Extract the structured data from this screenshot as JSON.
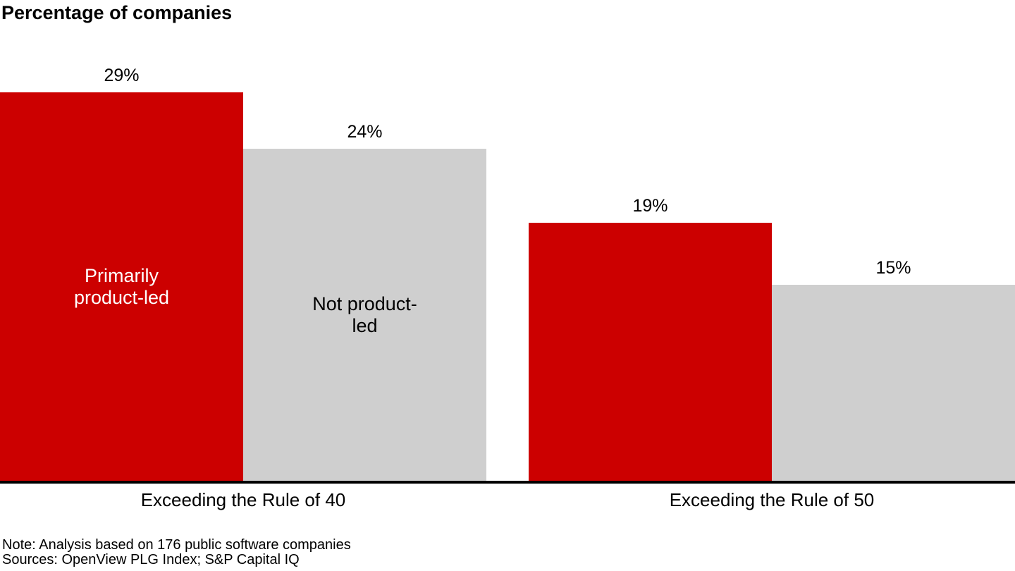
{
  "chart_data": {
    "type": "bar",
    "title": "Percentage of companies",
    "categories": [
      "Exceeding the Rule of 40",
      "Exceeding the Rule of 50"
    ],
    "series": [
      {
        "name": "Primarily product-led",
        "color": "#cc0000",
        "label_text_color": "#ffffff",
        "values": [
          29,
          19
        ],
        "labels": [
          "29%",
          "19%"
        ]
      },
      {
        "name": "Not product-led",
        "color": "#cfcfcf",
        "label_text_color": "#000000",
        "values": [
          24,
          15
        ],
        "labels": [
          "24%",
          "15%"
        ]
      }
    ],
    "value_suffix": "%",
    "ylim": [
      0,
      30
    ],
    "grid": false,
    "legend_position": "inside-first-bars",
    "axis_line_color": "#000000",
    "background_color": "#ffffff"
  },
  "footer": {
    "note": "Note: Analysis based on 176 public software companies",
    "sources": "Sources: OpenView PLG Index; S&P Capital IQ"
  }
}
